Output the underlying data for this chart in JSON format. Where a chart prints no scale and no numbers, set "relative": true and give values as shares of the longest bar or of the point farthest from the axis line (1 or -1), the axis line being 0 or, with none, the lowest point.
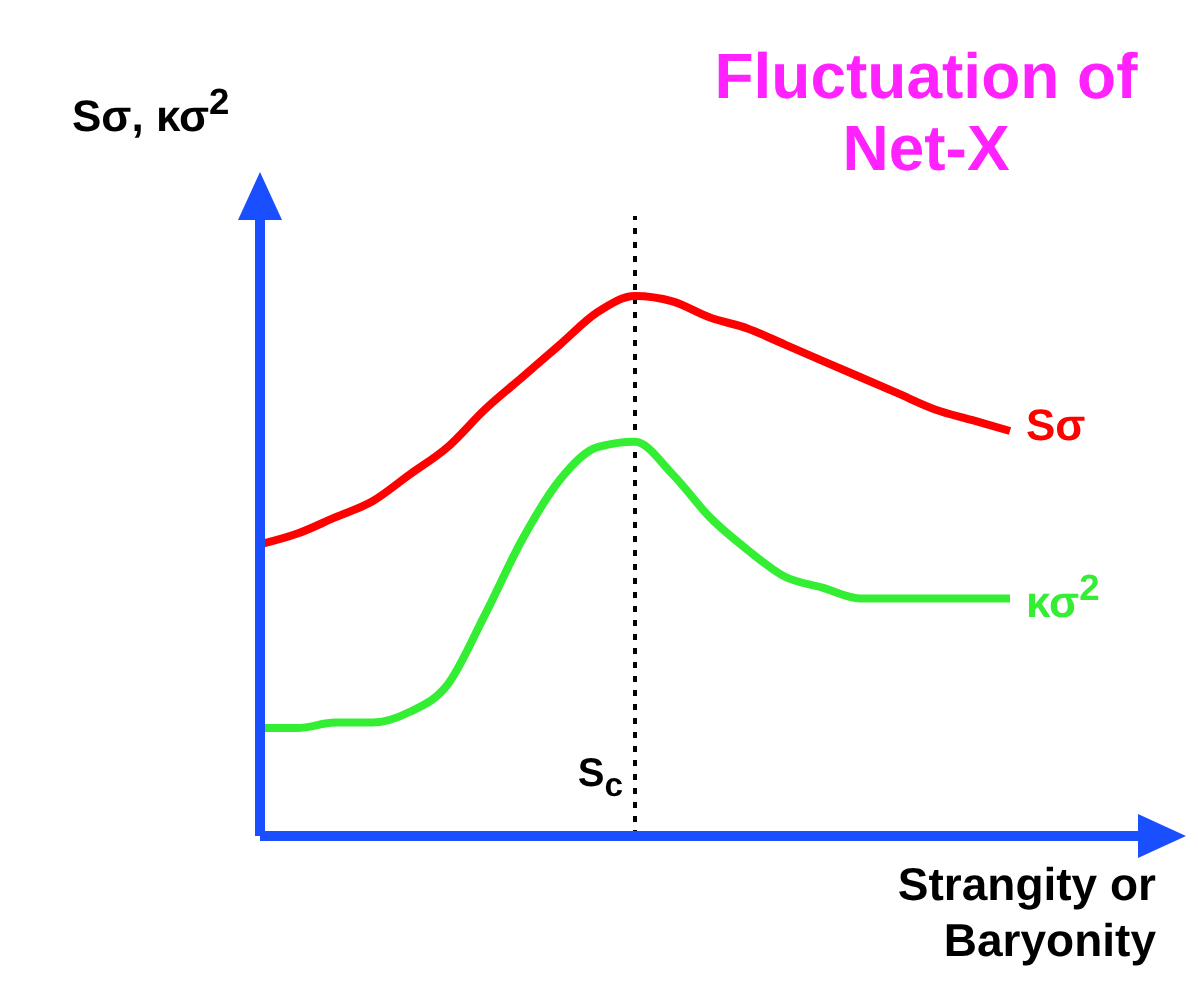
{
  "chart_data": {
    "type": "line",
    "relative": true,
    "title": "Fluctuation of Net-X",
    "ylabel": "Sσ, κσ$^{2}$",
    "xlabel": "Strangity or Baryonity",
    "categories": [
      null,
      null,
      null,
      null,
      null,
      null,
      null,
      null,
      null,
      null,
      null,
      null,
      null,
      null,
      null,
      null,
      null,
      null,
      null,
      null,
      null
    ],
    "series": [
      {
        "name": "Sσ",
        "color": "#ff0000",
        "values": [
          0.54,
          0.56,
          0.59,
          0.62,
          0.67,
          0.72,
          0.79,
          0.85,
          0.91,
          0.97,
          1,
          0.99,
          0.96,
          0.94,
          0.91,
          0.88,
          0.85,
          0.82,
          0.79,
          0.77,
          0.75
        ]
      },
      {
        "name": "κσ$^{2}$",
        "color": "#33ee33",
        "values": [
          0.2,
          0.2,
          0.21,
          0.21,
          0.23,
          0.28,
          0.41,
          0.55,
          0.66,
          0.72,
          0.73,
          0.67,
          0.59,
          0.53,
          0.48,
          0.46,
          0.44,
          0.44,
          0.44,
          0.44,
          0.44
        ]
      }
    ],
    "annotations": [
      "S$_{c}$"
    ],
    "marker": "none",
    "line_style": "solid",
    "grid": false,
    "legend": false
  }
}
